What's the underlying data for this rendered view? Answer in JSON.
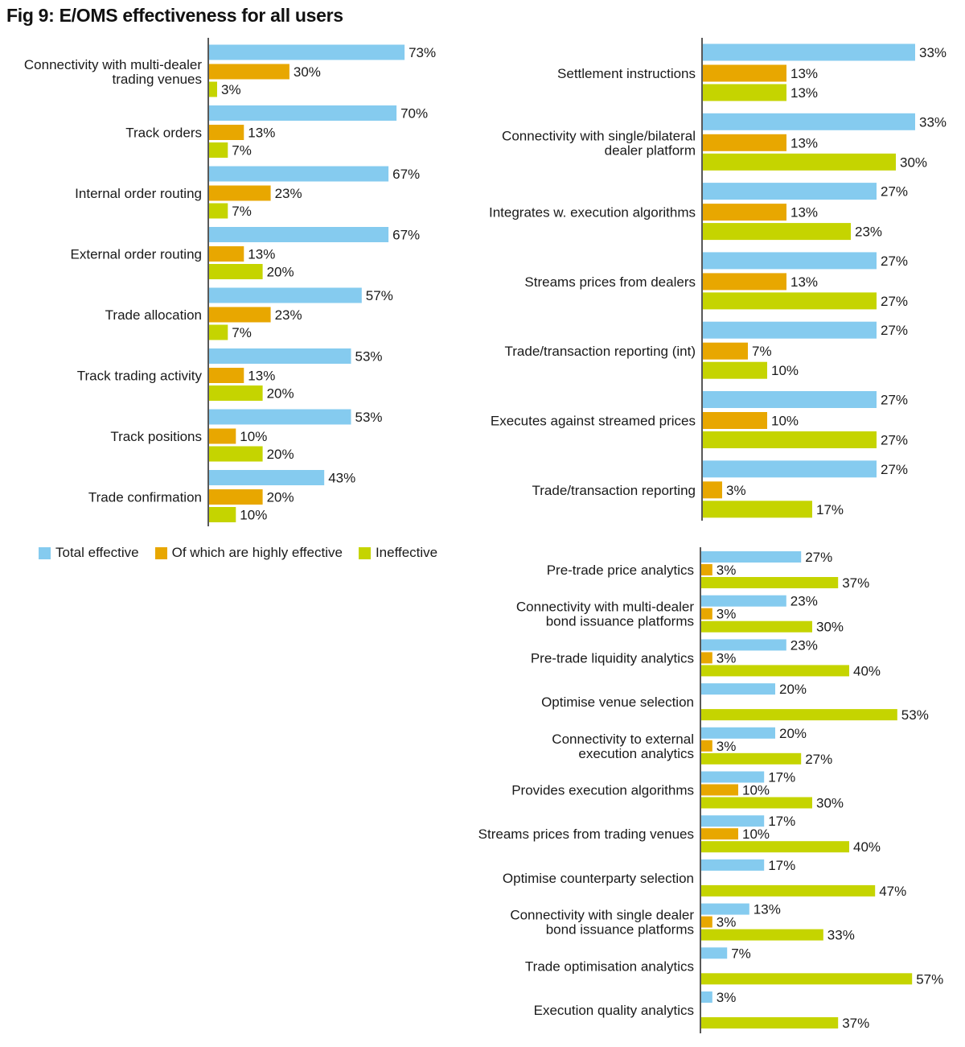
{
  "title": "Fig 9: E/OMS effectiveness for all users",
  "colors": {
    "total": "#85CBEF",
    "highly": "#E8A700",
    "ineffective": "#C5D400",
    "axis": "#222222"
  },
  "legend": [
    {
      "label": "Total effective",
      "color": "#85CBEF"
    },
    {
      "label": "Of which are highly effective",
      "color": "#E8A700"
    },
    {
      "label": "Ineffective",
      "color": "#C5D400"
    }
  ],
  "chart_data": [
    {
      "type": "bar",
      "orientation": "horizontal",
      "series_names": [
        "Total effective",
        "Of which are highly effective",
        "Ineffective"
      ],
      "categories": [
        "Connectivity with multi-dealer trading venues",
        "Track orders",
        "Internal order routing",
        "External order routing",
        "Trade allocation",
        "Track trading activity",
        "Track positions",
        "Trade confirmation"
      ],
      "series": [
        {
          "name": "Total effective",
          "values": [
            73,
            70,
            67,
            67,
            57,
            53,
            53,
            43
          ]
        },
        {
          "name": "Of which are highly effective",
          "values": [
            30,
            13,
            23,
            13,
            23,
            13,
            10,
            20
          ]
        },
        {
          "name": "Ineffective",
          "values": [
            3,
            7,
            7,
            20,
            7,
            20,
            20,
            10
          ]
        }
      ],
      "unit": "%"
    },
    {
      "type": "bar",
      "orientation": "horizontal",
      "categories": [
        "Settlement instructions",
        "Connectivity with single/bilateral dealer platform",
        "Integrates w. execution algorithms",
        "Streams prices from dealers",
        "Trade/transaction reporting (int)",
        "Executes against streamed prices",
        "Trade/transaction reporting"
      ],
      "series": [
        {
          "name": "Total effective",
          "values": [
            33,
            33,
            27,
            27,
            27,
            27,
            27
          ]
        },
        {
          "name": "Of which are highly effective",
          "values": [
            13,
            13,
            13,
            13,
            7,
            10,
            3
          ]
        },
        {
          "name": "Ineffective",
          "values": [
            13,
            30,
            23,
            27,
            10,
            27,
            17
          ]
        }
      ],
      "unit": "%"
    },
    {
      "type": "bar",
      "orientation": "horizontal",
      "categories": [
        "Pre-trade price analytics",
        "Connectivity with multi-dealer bond issuance platforms",
        "Pre-trade liquidity analytics",
        "Optimise venue selection",
        "Connectivity to external execution analytics",
        "Provides execution algorithms",
        "Streams prices from trading venues",
        "Optimise counterparty selection",
        "Connectivity with single dealer bond issuance platforms",
        "Trade optimisation analytics",
        "Execution quality analytics"
      ],
      "series": [
        {
          "name": "Total effective",
          "values": [
            27,
            23,
            23,
            20,
            20,
            17,
            17,
            17,
            13,
            7,
            3
          ]
        },
        {
          "name": "Of which are highly effective",
          "values": [
            3,
            3,
            3,
            null,
            3,
            10,
            10,
            null,
            3,
            null,
            null
          ]
        },
        {
          "name": "Ineffective",
          "values": [
            37,
            30,
            40,
            53,
            27,
            30,
            40,
            47,
            33,
            57,
            37
          ]
        }
      ],
      "unit": "%"
    }
  ]
}
